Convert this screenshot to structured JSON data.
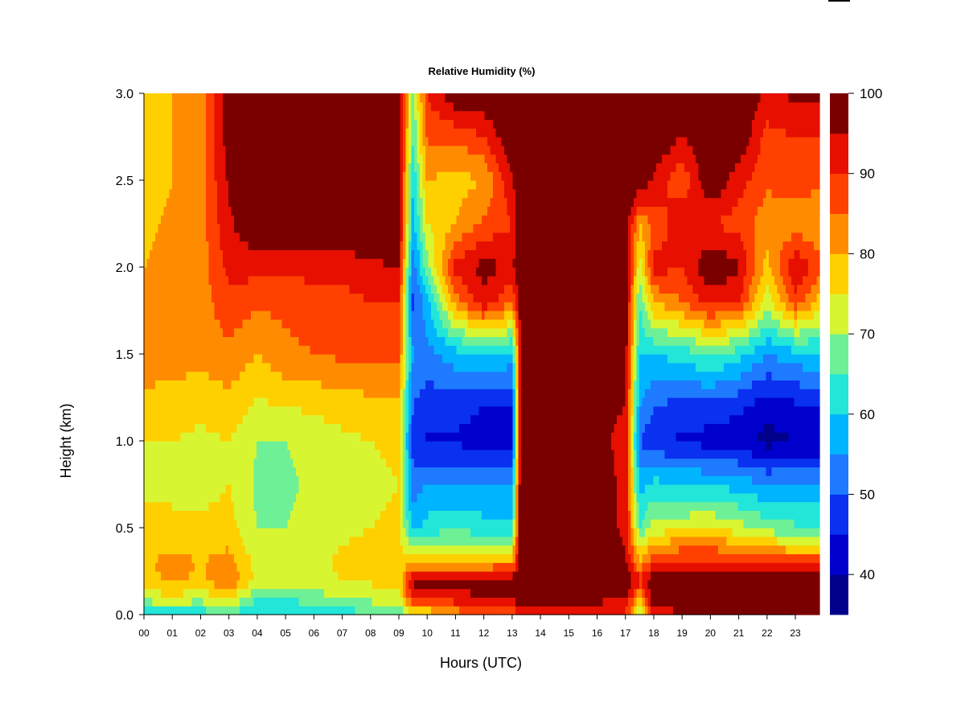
{
  "chart_data": {
    "type": "heatmap",
    "title": "Relative Humidity (%)",
    "xlabel": "Hours (UTC)",
    "ylabel": "Height (km)",
    "xlim": [
      0,
      23.85
    ],
    "ylim": [
      0,
      3.0
    ],
    "x_tick_labels": [
      "00",
      "01",
      "02",
      "03",
      "04",
      "05",
      "06",
      "07",
      "08",
      "09",
      "10",
      "11",
      "12",
      "13",
      "14",
      "15",
      "16",
      "17",
      "18",
      "19",
      "20",
      "21",
      "22",
      "23"
    ],
    "y_tick_labels": [
      "0.0",
      "0.5",
      "1.0",
      "1.5",
      "2.0",
      "2.5",
      "3.0"
    ],
    "y_tick_values": [
      0,
      0.5,
      1.0,
      1.5,
      2.0,
      2.5,
      3.0
    ],
    "colorbar": {
      "levels": [
        35,
        40,
        45,
        50,
        55,
        60,
        65,
        70,
        75,
        80,
        85,
        90,
        95,
        100
      ],
      "tick_labels": [
        "40",
        "50",
        "60",
        "70",
        "80",
        "90",
        "100"
      ],
      "tick_values": [
        40,
        50,
        60,
        70,
        80,
        90,
        100
      ],
      "colors": [
        "#00008b",
        "#0000cd",
        "#0a30f0",
        "#1e7aff",
        "#00b4ff",
        "#22e6d8",
        "#6ef096",
        "#d8f532",
        "#ffd000",
        "#ff8c00",
        "#ff4000",
        "#e60f00",
        "#7a0000"
      ]
    },
    "heights_km": [
      0.0,
      0.1,
      0.2,
      0.3,
      0.5,
      0.75,
      1.0,
      1.2,
      1.5,
      1.8,
      2.0,
      2.25,
      2.5,
      2.75,
      3.0
    ],
    "hours": [
      0,
      1,
      2,
      3,
      4,
      5,
      6,
      7,
      8,
      9,
      9.5,
      10,
      11,
      12,
      13,
      13.3,
      14,
      15,
      16,
      17,
      17.5,
      18,
      19,
      20,
      21,
      22,
      23,
      23.85
    ],
    "rh_profiles": [
      [
        62,
        72,
        77,
        79,
        76,
        74,
        75,
        77,
        85,
        82,
        80,
        79,
        78,
        78,
        77
      ],
      [
        62,
        74,
        82,
        82,
        76,
        74,
        75,
        77,
        83,
        84,
        82,
        81,
        80,
        80,
        80
      ],
      [
        62,
        72,
        78,
        80,
        76,
        73,
        74,
        76,
        82,
        83,
        82,
        83,
        83,
        82,
        82
      ],
      [
        65,
        76,
        86,
        82,
        77,
        75,
        75,
        78,
        84,
        88,
        92,
        94,
        96,
        98,
        99
      ],
      [
        58,
        66,
        73,
        73,
        70,
        69,
        70,
        74,
        80,
        86,
        92,
        100,
        100,
        100,
        100
      ],
      [
        58,
        66,
        72,
        73,
        70,
        69,
        70,
        75,
        84,
        86,
        92,
        100,
        100,
        100,
        100
      ],
      [
        60,
        68,
        73,
        74,
        72,
        71,
        72,
        76,
        85,
        87,
        92,
        100,
        100,
        100,
        100
      ],
      [
        62,
        70,
        75,
        76,
        74,
        73,
        74,
        77,
        86,
        88,
        92,
        100,
        100,
        100,
        100
      ],
      [
        64,
        72,
        76,
        77,
        75,
        74,
        75,
        78,
        87,
        90,
        94,
        100,
        100,
        100,
        100
      ],
      [
        66,
        74,
        77,
        78,
        76,
        75,
        76,
        78,
        86,
        90,
        95,
        100,
        100,
        100,
        100
      ],
      [
        73,
        92,
        96,
        78,
        58,
        52,
        48,
        50,
        55,
        48,
        52,
        58,
        60,
        65,
        68
      ],
      [
        75,
        92,
        96,
        80,
        62,
        55,
        44,
        47,
        53,
        58,
        68,
        75,
        80,
        86,
        90
      ],
      [
        82,
        93,
        97,
        80,
        64,
        56,
        44,
        47,
        58,
        82,
        92,
        80,
        78,
        86,
        100
      ],
      [
        84,
        95,
        98,
        80,
        62,
        55,
        43,
        45,
        60,
        94,
        97,
        86,
        80,
        90,
        100
      ],
      [
        86,
        96,
        98,
        82,
        62,
        55,
        43,
        45,
        58,
        85,
        94,
        90,
        94,
        100,
        100
      ],
      [
        92,
        98,
        100,
        100,
        100,
        100,
        96,
        96,
        95,
        98,
        100,
        100,
        100,
        100,
        100
      ],
      [
        94,
        98,
        100,
        100,
        100,
        100,
        96,
        96,
        96,
        98,
        100,
        100,
        100,
        100,
        100
      ],
      [
        92,
        98,
        100,
        100,
        100,
        100,
        96,
        95,
        97,
        100,
        100,
        100,
        100,
        100,
        100
      ],
      [
        90,
        97,
        100,
        100,
        98,
        97,
        96,
        96,
        98,
        100,
        100,
        100,
        100,
        100,
        100
      ],
      [
        88,
        96,
        100,
        96,
        94,
        94,
        94,
        95,
        98,
        100,
        100,
        100,
        100,
        100,
        100
      ],
      [
        70,
        80,
        92,
        80,
        65,
        58,
        50,
        55,
        60,
        65,
        72,
        80,
        100,
        100,
        100
      ],
      [
        92,
        100,
        100,
        90,
        72,
        62,
        46,
        50,
        60,
        80,
        92,
        86,
        94,
        100,
        100
      ],
      [
        94,
        100,
        100,
        92,
        74,
        60,
        44,
        48,
        62,
        85,
        90,
        94,
        86,
        95,
        100
      ],
      [
        94,
        100,
        100,
        92,
        75,
        60,
        43,
        48,
        66,
        92,
        100,
        90,
        100,
        100,
        100
      ],
      [
        94,
        100,
        100,
        90,
        72,
        58,
        42,
        46,
        62,
        90,
        96,
        88,
        92,
        100,
        100
      ],
      [
        95,
        100,
        100,
        88,
        68,
        55,
        38,
        42,
        55,
        72,
        78,
        82,
        86,
        88,
        94
      ],
      [
        95,
        100,
        100,
        88,
        66,
        55,
        40,
        44,
        58,
        88,
        95,
        82,
        88,
        90,
        96
      ],
      [
        96,
        100,
        100,
        88,
        65,
        55,
        40,
        44,
        60,
        78,
        88,
        80,
        86,
        90,
        96
      ]
    ]
  }
}
